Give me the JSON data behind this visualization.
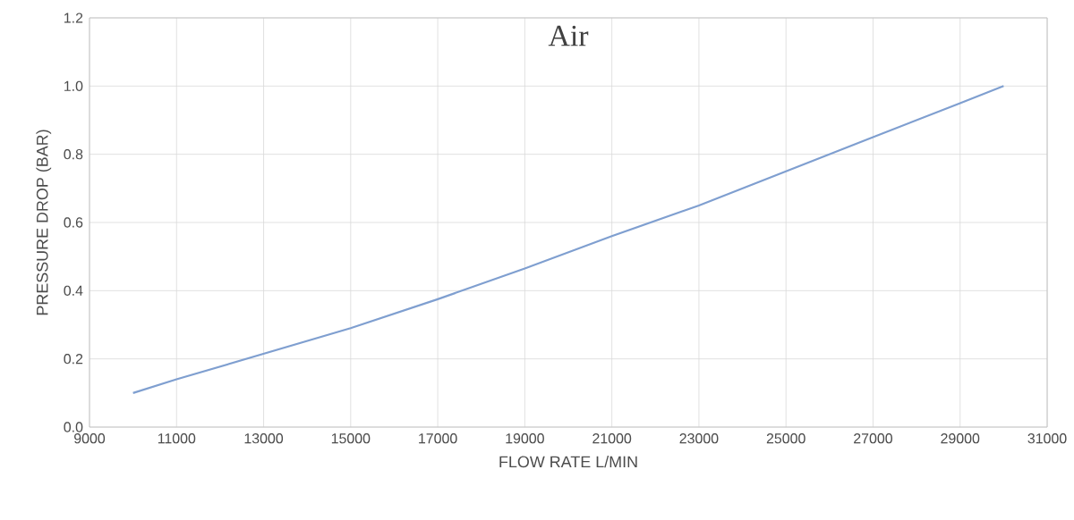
{
  "chart_data": {
    "type": "line",
    "title": "Air",
    "xlabel": "FLOW RATE L/MIN",
    "ylabel": "PRESSURE DROP (BAR)",
    "x": [
      10000,
      11000,
      13000,
      15000,
      17000,
      19000,
      21000,
      23000,
      25000,
      27000,
      29000,
      30000
    ],
    "series": [
      {
        "color": "#7f9fd0",
        "values": [
          0.1,
          0.14,
          0.215,
          0.29,
          0.375,
          0.465,
          0.56,
          0.65,
          0.75,
          0.85,
          0.95,
          1.0
        ]
      }
    ],
    "xlim": [
      9000,
      31000
    ],
    "xticks": [
      9000,
      11000,
      13000,
      15000,
      17000,
      19000,
      21000,
      23000,
      25000,
      27000,
      29000,
      31000
    ],
    "ylim": [
      0,
      1.2
    ],
    "yticks": [
      {
        "value": 0,
        "label": "0.0"
      },
      {
        "value": 0.2,
        "label": "0.2"
      },
      {
        "value": 0.4,
        "label": "0.4"
      },
      {
        "value": 0.6,
        "label": "0.6"
      },
      {
        "value": 0.8,
        "label": "0.8"
      },
      {
        "value": 1.0,
        "label": "1.0"
      },
      {
        "value": 1.2,
        "label": "1.2"
      }
    ],
    "grid": true,
    "marker": "none",
    "line_style": "solid"
  }
}
